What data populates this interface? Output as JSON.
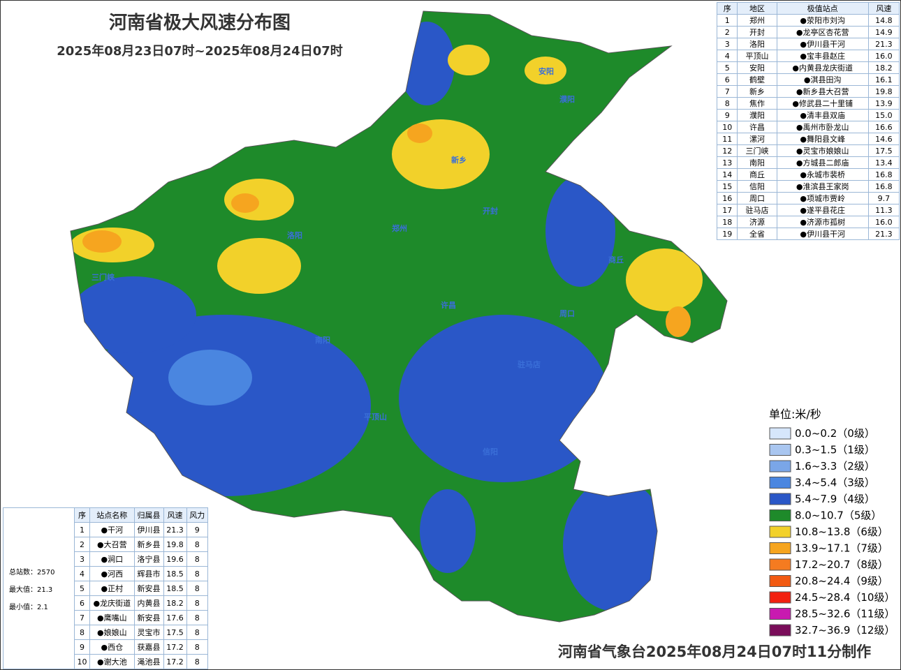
{
  "header": {
    "title": "河南省极大风速分布图",
    "subtitle": "2025年08月23日07时~2025年08月24日07时"
  },
  "region_table": {
    "columns": [
      "序",
      "地区",
      "极值站点",
      "风速"
    ],
    "rows": [
      [
        "1",
        "郑州",
        "●荥阳市刘沟",
        "14.8"
      ],
      [
        "2",
        "开封",
        "●龙亭区杏花营",
        "14.9"
      ],
      [
        "3",
        "洛阳",
        "●伊川县干河",
        "21.3"
      ],
      [
        "4",
        "平顶山",
        "●宝丰县赵庄",
        "16.0"
      ],
      [
        "5",
        "安阳",
        "●内黄县龙庆街道",
        "18.2"
      ],
      [
        "6",
        "鹤壁",
        "●淇县田沟",
        "16.1"
      ],
      [
        "7",
        "新乡",
        "●新乡县大召营",
        "19.8"
      ],
      [
        "8",
        "焦作",
        "●修武县二十里铺",
        "13.9"
      ],
      [
        "9",
        "濮阳",
        "●清丰县双庙",
        "15.0"
      ],
      [
        "10",
        "许昌",
        "●禹州市卧龙山",
        "16.6"
      ],
      [
        "11",
        "漯河",
        "●舞阳县文峰",
        "14.6"
      ],
      [
        "12",
        "三门峡",
        "●灵宝市娘娘山",
        "17.5"
      ],
      [
        "13",
        "南阳",
        "●方城县二郎庙",
        "13.4"
      ],
      [
        "14",
        "商丘",
        "●永城市裴桥",
        "16.8"
      ],
      [
        "15",
        "信阳",
        "●淮滨县王家岗",
        "16.8"
      ],
      [
        "16",
        "周口",
        "●项城市贾岭",
        "9.7"
      ],
      [
        "17",
        "驻马店",
        "●遂平县花庄",
        "11.3"
      ],
      [
        "18",
        "济源",
        "●济源市孤树",
        "16.0"
      ],
      [
        "19",
        "全省",
        "●伊川县干河",
        "21.3"
      ]
    ]
  },
  "station_table": {
    "columns": [
      "序",
      "站点名称",
      "归属县",
      "风速",
      "风力"
    ],
    "rows": [
      [
        "1",
        "●干河",
        "伊川县",
        "21.3",
        "9"
      ],
      [
        "2",
        "●大召营",
        "新乡县",
        "19.8",
        "8"
      ],
      [
        "3",
        "●涧口",
        "洛宁县",
        "19.6",
        "8"
      ],
      [
        "4",
        "●河西",
        "辉县市",
        "18.5",
        "8"
      ],
      [
        "5",
        "●正村",
        "新安县",
        "18.5",
        "8"
      ],
      [
        "6",
        "●龙庆街道",
        "内黄县",
        "18.2",
        "8"
      ],
      [
        "7",
        "●鹰嘴山",
        "新安县",
        "17.6",
        "8"
      ],
      [
        "8",
        "●娘娘山",
        "灵宝市",
        "17.5",
        "8"
      ],
      [
        "9",
        "●西仓",
        "获嘉县",
        "17.2",
        "8"
      ],
      [
        "10",
        "●谢大池",
        "渑池县",
        "17.2",
        "8"
      ]
    ]
  },
  "stats": [
    "总站数：2570",
    "最大值：21.3",
    "最小值：2.1"
  ],
  "legend": {
    "title": "单位:米/秒",
    "items": [
      {
        "label": "0.0~0.2（0级）",
        "color": "#d6e6fb"
      },
      {
        "label": "0.3~1.5（1级）",
        "color": "#a9c6f0"
      },
      {
        "label": "1.6~3.3（2级）",
        "color": "#7aa6e8"
      },
      {
        "label": "3.4~5.4（3级）",
        "color": "#4a86e0"
      },
      {
        "label": "5.4~7.9（4级）",
        "color": "#2a57c7"
      },
      {
        "label": "8.0~10.7（5级）",
        "color": "#1e8a2a"
      },
      {
        "label": "10.8~13.8（6级）",
        "color": "#f2d12a"
      },
      {
        "label": "13.9~17.1（7级）",
        "color": "#f6a51f"
      },
      {
        "label": "17.2~20.7（8级）",
        "color": "#f57b20"
      },
      {
        "label": "20.8~24.4（9级）",
        "color": "#f25a12"
      },
      {
        "label": "24.5~28.4（10级）",
        "color": "#f2200f"
      },
      {
        "label": "28.5~32.6（11级）",
        "color": "#c81ab0"
      },
      {
        "label": "32.7~36.9（12级）",
        "color": "#7a0d5a"
      }
    ]
  },
  "map": {
    "cities": [
      "安阳",
      "濮阳",
      "新乡",
      "开封",
      "郑州",
      "洛阳",
      "许昌",
      "商丘",
      "周口",
      "驻马店",
      "南阳",
      "信阳",
      "三门峡",
      "平顶山"
    ]
  },
  "footer": "河南省气象台2025年08月24日07时11分制作"
}
